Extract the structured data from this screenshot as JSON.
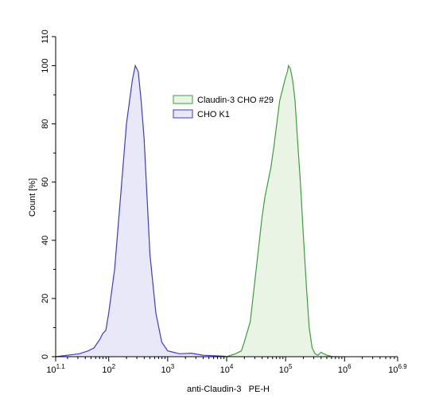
{
  "chart_data": {
    "type": "area",
    "xlabel": "anti-Claudin-3   PE-H",
    "ylabel": "Count  [%]",
    "x_scale": "log10",
    "xlim": [
      1.1,
      6.9
    ],
    "ylim": [
      0,
      110
    ],
    "x_ticks": [
      {
        "exp": 1.1,
        "label_base": "10",
        "label_exp": "1.1"
      },
      {
        "exp": 2,
        "label_base": "10",
        "label_exp": "2"
      },
      {
        "exp": 3,
        "label_base": "10",
        "label_exp": "3"
      },
      {
        "exp": 4,
        "label_base": "10",
        "label_exp": "4"
      },
      {
        "exp": 5,
        "label_base": "10",
        "label_exp": "5"
      },
      {
        "exp": 6,
        "label_base": "10",
        "label_exp": "6"
      },
      {
        "exp": 6.9,
        "label_base": "10",
        "label_exp": "6.9"
      }
    ],
    "y_ticks": [
      "0",
      "20",
      "40",
      "60",
      "80",
      "100",
      "110"
    ],
    "legend_position": "top-center",
    "grid": false,
    "series": [
      {
        "name": "Claudin-3 CHO #29",
        "color": "#3aa03a",
        "fill": "#e9f4e5",
        "x_log10": [
          4.0,
          4.15,
          4.25,
          4.3,
          4.4,
          4.5,
          4.6,
          4.65,
          4.7,
          4.75,
          4.8,
          4.85,
          4.9,
          4.95,
          5.0,
          5.03,
          5.05,
          5.08,
          5.12,
          5.16,
          5.2,
          5.25,
          5.3,
          5.35,
          5.4,
          5.45,
          5.5,
          5.55,
          5.6,
          5.7,
          5.8,
          5.9
        ],
        "y": [
          0,
          1,
          2,
          5,
          12,
          30,
          48,
          55,
          60,
          65,
          72,
          80,
          88,
          92,
          96,
          98,
          100,
          99,
          95,
          88,
          75,
          60,
          42,
          25,
          10,
          3,
          1,
          0.5,
          1.5,
          0.5,
          0,
          0
        ]
      },
      {
        "name": "CHO K1",
        "color": "#3b3bd0",
        "fill": "#e8e8f8",
        "x_log10": [
          1.1,
          1.3,
          1.5,
          1.65,
          1.75,
          1.85,
          1.9,
          1.95,
          2.0,
          2.1,
          2.2,
          2.3,
          2.4,
          2.45,
          2.5,
          2.55,
          2.6,
          2.65,
          2.7,
          2.8,
          2.9,
          3.0,
          3.1,
          3.2,
          3.4,
          3.6,
          3.8,
          3.95,
          4.0
        ],
        "y": [
          0,
          0.5,
          1,
          2,
          3,
          6,
          8,
          9,
          15,
          30,
          55,
          80,
          95,
          100,
          98,
          88,
          75,
          55,
          35,
          15,
          5,
          2,
          1.5,
          1,
          1.2,
          0.5,
          0.3,
          0.2,
          0
        ]
      }
    ]
  }
}
